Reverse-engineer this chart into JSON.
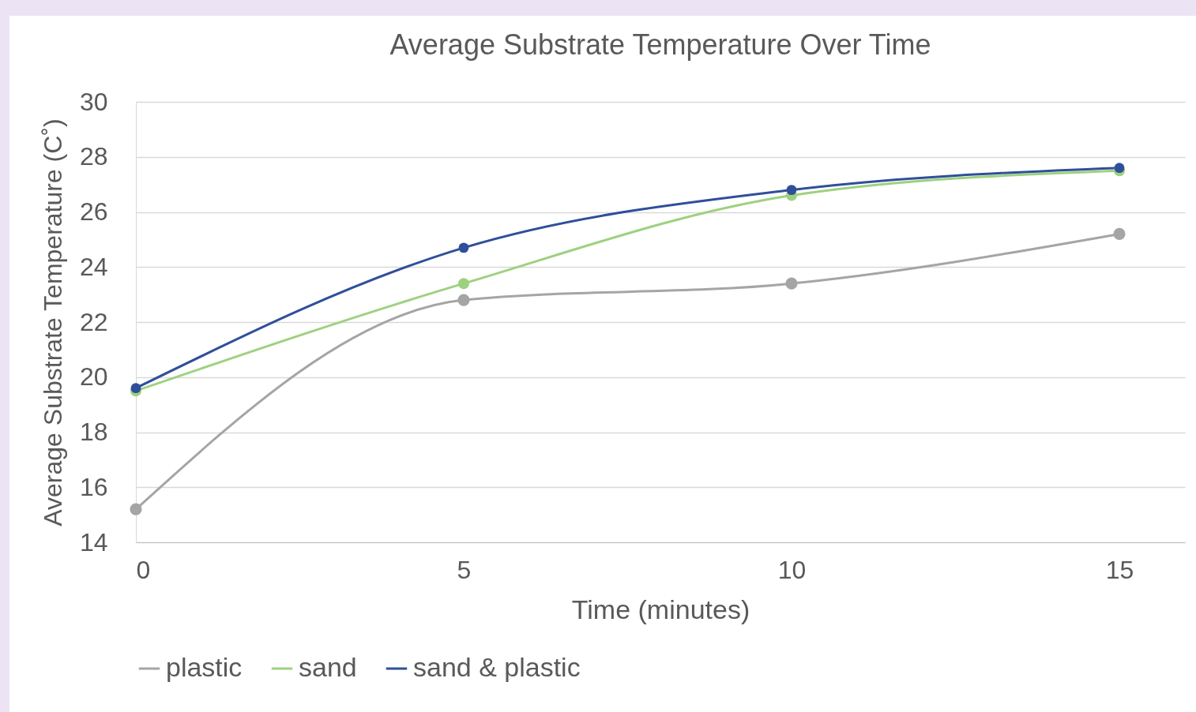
{
  "chart_data": {
    "type": "line",
    "title": "Average Substrate Temperature Over Time",
    "xlabel": "Time (minutes)",
    "ylabel": "Average Substrate Temperature (C˚)",
    "x": [
      0,
      5,
      10,
      15
    ],
    "series": [
      {
        "name": "plastic",
        "color": "#a5a5a5",
        "values": [
          15.2,
          22.8,
          23.4,
          25.2
        ]
      },
      {
        "name": "sand",
        "color": "#9dd17f",
        "values": [
          19.5,
          23.4,
          26.6,
          27.5
        ]
      },
      {
        "name": "sand & plastic",
        "color": "#2f4f9a",
        "values": [
          19.6,
          24.7,
          26.8,
          27.6
        ]
      }
    ],
    "xlim": [
      0,
      16
    ],
    "xticks": [
      0,
      5,
      10,
      15
    ],
    "ylim": [
      14,
      30
    ],
    "yticks": [
      14,
      16,
      18,
      20,
      22,
      24,
      26,
      28,
      30
    ],
    "grid": "y",
    "legend": "bottom",
    "marker": "circle",
    "line_style": "solid"
  }
}
